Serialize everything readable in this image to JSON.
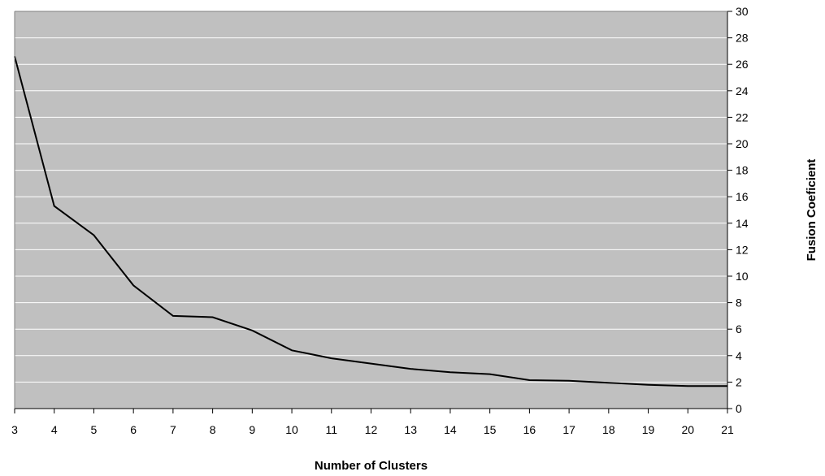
{
  "chart_data": {
    "type": "line",
    "title": "",
    "xlabel": "Number of Clusters",
    "ylabel": "Fusion Coeficient",
    "x": [
      3,
      4,
      5,
      6,
      7,
      8,
      9,
      10,
      11,
      12,
      13,
      14,
      15,
      16,
      17,
      18,
      19,
      20,
      21
    ],
    "series": [
      {
        "values": [
          26.6,
          15.3,
          13.1,
          9.3,
          7.0,
          6.9,
          5.9,
          4.4,
          3.8,
          3.4,
          3.0,
          2.75,
          2.6,
          2.15,
          2.1,
          1.95,
          1.8,
          1.7,
          1.7
        ]
      }
    ],
    "xlim": [
      3,
      21
    ],
    "ylim": [
      0,
      30
    ],
    "x_ticks": [
      3,
      4,
      5,
      6,
      7,
      8,
      9,
      10,
      11,
      12,
      13,
      14,
      15,
      16,
      17,
      18,
      19,
      20,
      21
    ],
    "y_ticks": [
      0,
      2,
      4,
      6,
      8,
      10,
      12,
      14,
      16,
      18,
      20,
      22,
      24,
      26,
      28,
      30
    ],
    "y_axis_side": "right",
    "grid": true,
    "legend": false,
    "colors": {
      "plot_background": "#c0c0c0",
      "gridline": "#ffffff",
      "line": "#000000",
      "axis": "#000000"
    }
  }
}
